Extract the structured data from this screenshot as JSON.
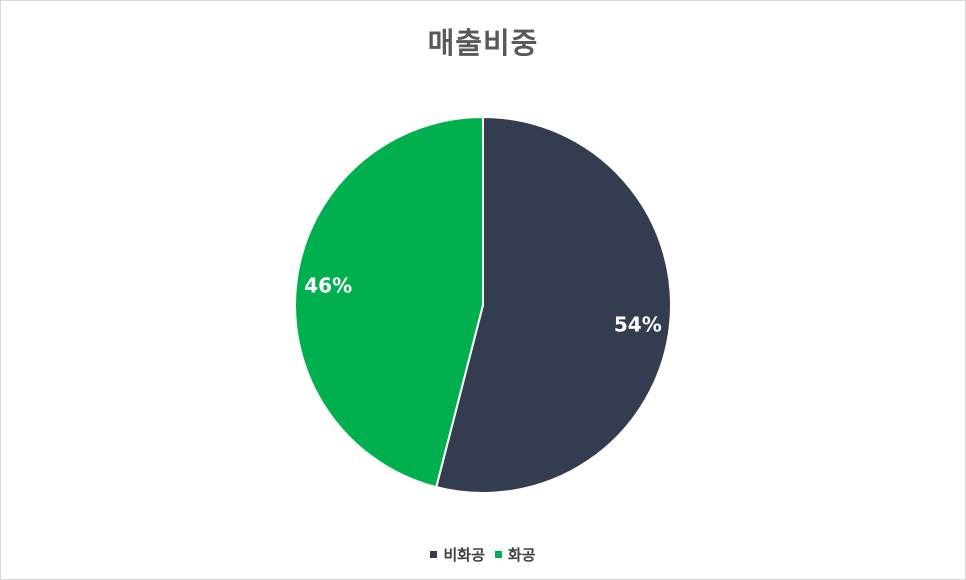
{
  "chart_data": {
    "type": "pie",
    "title": "매출비중",
    "slices": [
      {
        "name": "비화공",
        "value": 54,
        "label": "54%",
        "color": "#333d4f"
      },
      {
        "name": "화공",
        "value": 46,
        "label": "46%",
        "color": "#00b04f"
      }
    ],
    "legend_position": "bottom",
    "start": "top",
    "direction": "clockwise"
  }
}
